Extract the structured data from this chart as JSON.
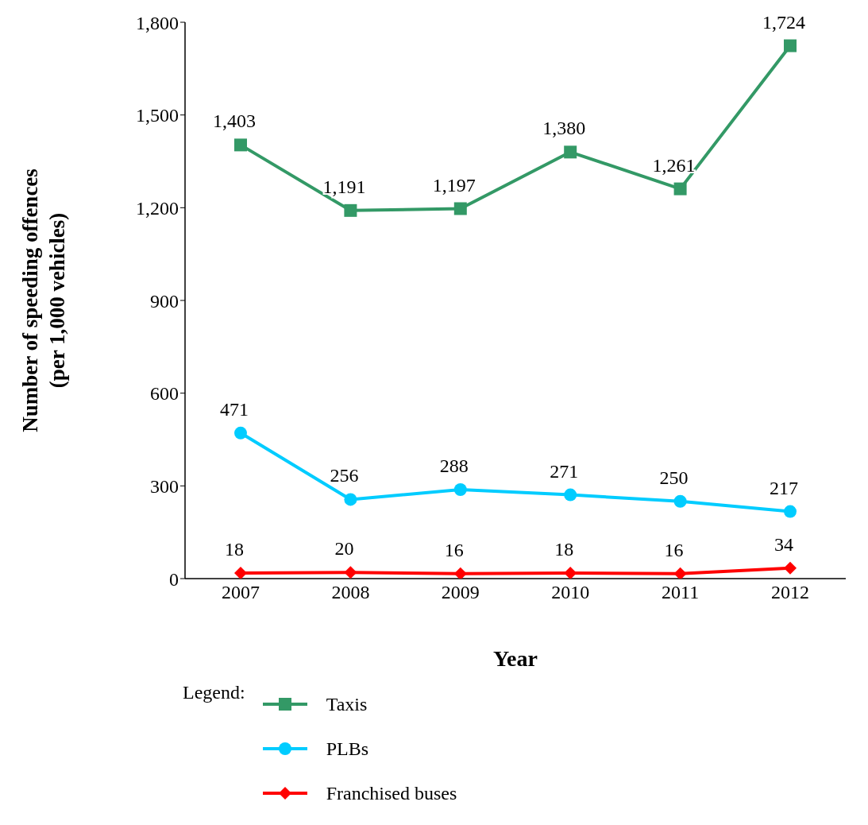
{
  "chart_data": {
    "type": "line",
    "xlabel": "Year",
    "ylabel": "Number of speeding offences\n(per 1,000 vehicles)",
    "legend_title": "Legend:",
    "legend": "bottom",
    "categories": [
      "2007",
      "2008",
      "2009",
      "2010",
      "2011",
      "2012"
    ],
    "ylim": [
      0,
      1800
    ],
    "yticks": [
      0,
      {
        "value": 300,
        "label": "300"
      },
      {
        "value": 600,
        "label": "600"
      },
      {
        "value": 900,
        "label": "900"
      },
      {
        "value": 1200,
        "label": "1,200"
      },
      {
        "value": 1500,
        "label": "1,500"
      },
      {
        "value": 1800,
        "label": "1,800"
      }
    ],
    "grid": false,
    "series": [
      {
        "name": "Taxis",
        "color": "#339966",
        "marker": "square",
        "values": [
          1403,
          1191,
          1197,
          1380,
          1261,
          1724
        ],
        "value_labels": [
          "1,403",
          "1,191",
          "1,197",
          "1,380",
          "1,261",
          "1,724"
        ]
      },
      {
        "name": "PLBs",
        "color": "#00ccff",
        "marker": "circle",
        "values": [
          471,
          256,
          288,
          271,
          250,
          217
        ],
        "value_labels": [
          "471",
          "256",
          "288",
          "271",
          "250",
          "217"
        ]
      },
      {
        "name": "Franchised buses",
        "color": "#ff0000",
        "marker": "diamond",
        "values": [
          18,
          20,
          16,
          18,
          16,
          34
        ],
        "value_labels": [
          "18",
          "20",
          "16",
          "18",
          "16",
          "34"
        ]
      }
    ]
  }
}
